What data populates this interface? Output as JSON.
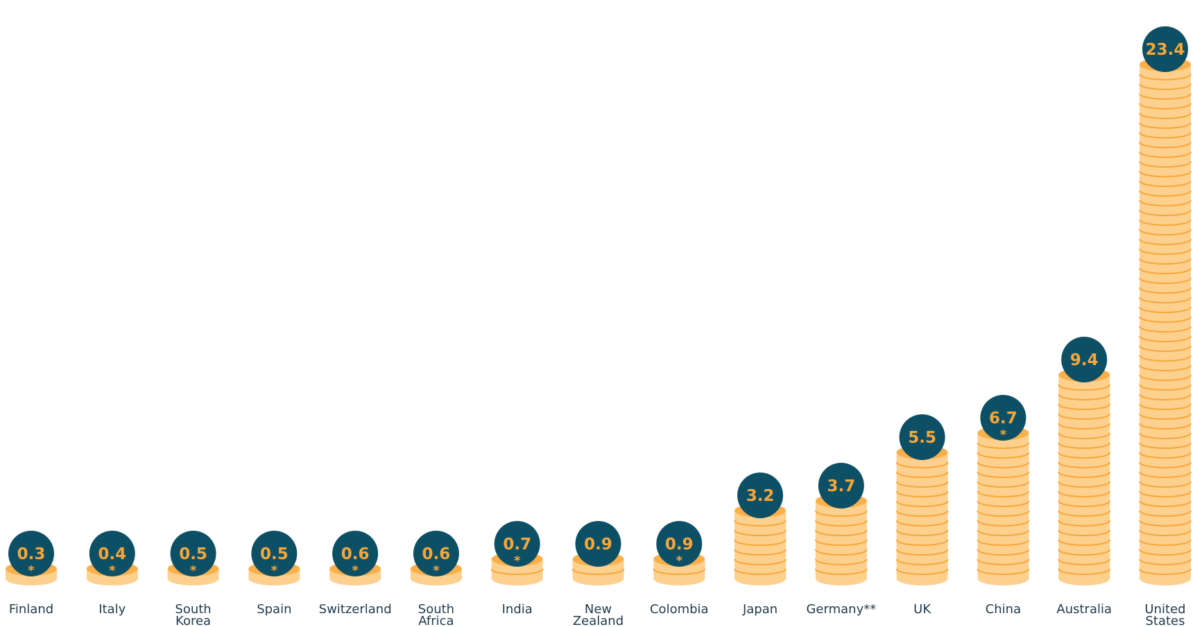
{
  "colors": {
    "coin": "#fdd08e",
    "coin_line": "#f7a739",
    "coin_top": "#f9b04b",
    "bubble": "#0d5066",
    "bubble_text": "#f7a739",
    "label": "#1f3a4d"
  },
  "chart_data": {
    "type": "bar",
    "title": "",
    "xlabel": "",
    "ylabel": "",
    "categories": [
      "Finland",
      "Italy",
      "South Korea",
      "Spain",
      "Switzerland",
      "South Africa",
      "India",
      "New Zealand",
      "Colombia",
      "Japan",
      "Germany**",
      "UK",
      "China",
      "Australia",
      "United States"
    ],
    "category_lines": [
      [
        "Finland"
      ],
      [
        "Italy"
      ],
      [
        "South",
        "Korea"
      ],
      [
        "Spain"
      ],
      [
        "Switzerland"
      ],
      [
        "South",
        "Africa"
      ],
      [
        "India"
      ],
      [
        "New",
        "Zealand"
      ],
      [
        "Colombia"
      ],
      [
        "Japan"
      ],
      [
        "Germany**"
      ],
      [
        "UK"
      ],
      [
        "China"
      ],
      [
        "Australia"
      ],
      [
        "United",
        "States"
      ]
    ],
    "values": [
      0.3,
      0.4,
      0.5,
      0.5,
      0.6,
      0.6,
      0.7,
      0.9,
      0.9,
      3.2,
      3.7,
      5.5,
      6.7,
      9.4,
      23.4
    ],
    "value_labels": [
      "0.3",
      "0.4",
      "0.5",
      "0.5",
      "0.6",
      "0.6",
      "0.7",
      "0.9",
      "0.9",
      "3.2",
      "3.7",
      "5.5",
      "6.7",
      "9.4",
      "23.4"
    ],
    "markers": [
      "*",
      "*",
      "*",
      "*",
      "*",
      "*",
      "*",
      "",
      "*",
      "",
      "",
      "",
      "*",
      "",
      ""
    ],
    "ylim": [
      0,
      23.4
    ],
    "grid": false,
    "legend": "none"
  }
}
